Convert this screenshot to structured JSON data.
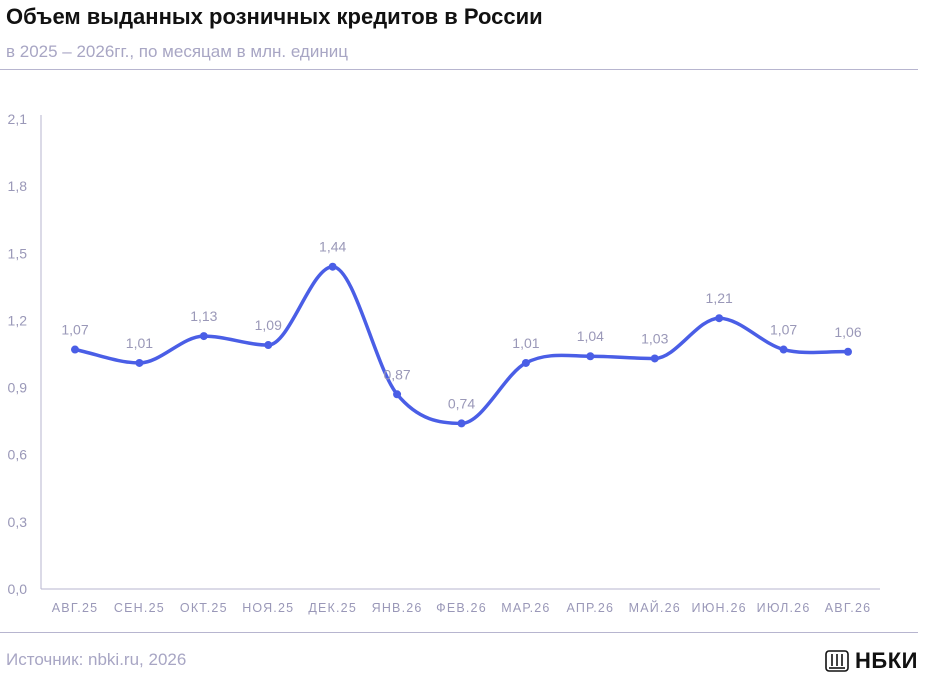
{
  "header": {
    "title": "Объем выданных розничных кредитов в России",
    "subtitle": "в 2025 – 2026гг., по месяцам в млн. единиц"
  },
  "footer": {
    "source": "Источник: nbki.ru, 2026",
    "brand": "НБКИ",
    "brand_icon": "building-columns-icon"
  },
  "colors": {
    "line": "#4a5ee6",
    "label": "#9a98b8",
    "axis": "#b7b5cf"
  },
  "chart_data": {
    "type": "line",
    "categories": [
      "АВГ.25",
      "СЕН.25",
      "ОКТ.25",
      "НОЯ.25",
      "ДЕК.25",
      "ЯНВ.26",
      "ФЕВ.26",
      "МАР.26",
      "АПР.26",
      "МАЙ.26",
      "ИЮН.26",
      "ИЮЛ.26",
      "АВГ.26"
    ],
    "series": [
      {
        "values": [
          1.07,
          1.01,
          1.13,
          1.09,
          1.44,
          0.87,
          0.74,
          1.01,
          1.04,
          1.03,
          1.21,
          1.07,
          1.06
        ]
      }
    ],
    "data_labels": [
      "1,07",
      "1,01",
      "1,13",
      "1,09",
      "1,44",
      "0,87",
      "0,74",
      "1,01",
      "1,04",
      "1,03",
      "1,21",
      "1,07",
      "1,06"
    ],
    "yticks": [
      "0,0",
      "0,3",
      "0,6",
      "0,9",
      "1,2",
      "1,5",
      "1,8",
      "2,1"
    ],
    "ylim": [
      0,
      2.1
    ],
    "grid": false,
    "legend": "none"
  }
}
